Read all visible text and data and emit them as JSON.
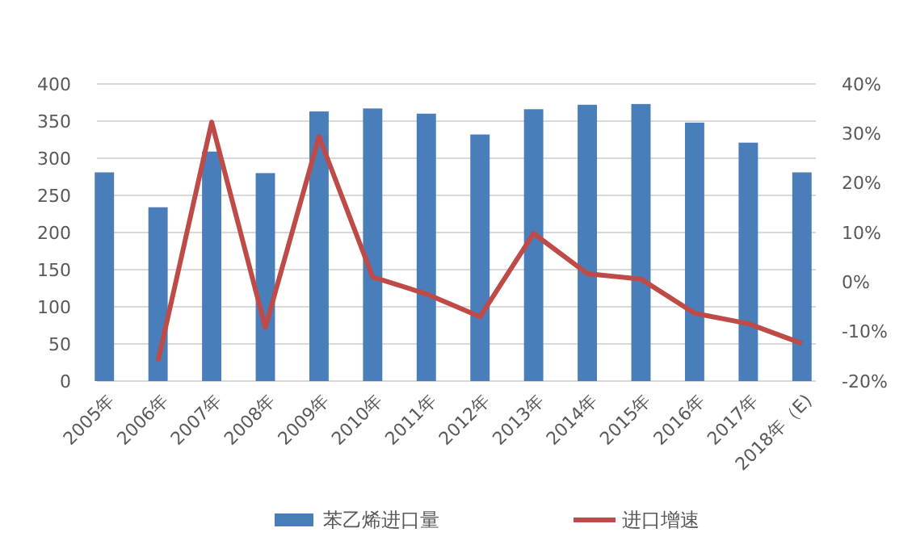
{
  "chart_data": {
    "type": "bar",
    "categories": [
      "2005年",
      "2006年",
      "2007年",
      "2008年",
      "2009年",
      "2010年",
      "2011年",
      "2012年",
      "2013年",
      "2014年",
      "2015年",
      "2016年",
      "2017年",
      "2018年（E)"
    ],
    "series": [
      {
        "name": "苯乙烯进口量",
        "color": "#4a7ebb",
        "values": [
          281,
          234,
          309,
          280,
          363,
          367,
          360,
          332,
          366,
          372,
          373,
          348,
          321,
          281
        ]
      },
      {
        "name": "进口增速",
        "type": "line",
        "axis": "y2",
        "color": "#be4b48",
        "values": [
          null,
          -16,
          32.3,
          -9.2,
          29.4,
          1,
          -2.4,
          -7,
          9.8,
          1.7,
          0.6,
          -6.3,
          -8.4,
          -12.4
        ]
      }
    ],
    "ylim": [
      0,
      400
    ],
    "yticks": [
      0,
      50,
      100,
      150,
      200,
      250,
      300,
      350,
      400
    ],
    "y2lim": [
      -20,
      40
    ],
    "y2ticks": [
      {
        "value": -20,
        "label": "-20%"
      },
      {
        "value": -10,
        "label": "-10%"
      },
      {
        "value": 0,
        "label": "0%"
      },
      {
        "value": 10,
        "label": "10%"
      },
      {
        "value": 20,
        "label": "20%"
      },
      {
        "value": 30,
        "label": "30%"
      },
      {
        "value": 40,
        "label": "40%"
      }
    ],
    "grid": "y",
    "legend": "bottom",
    "marker": "none",
    "line_style": "solid"
  }
}
